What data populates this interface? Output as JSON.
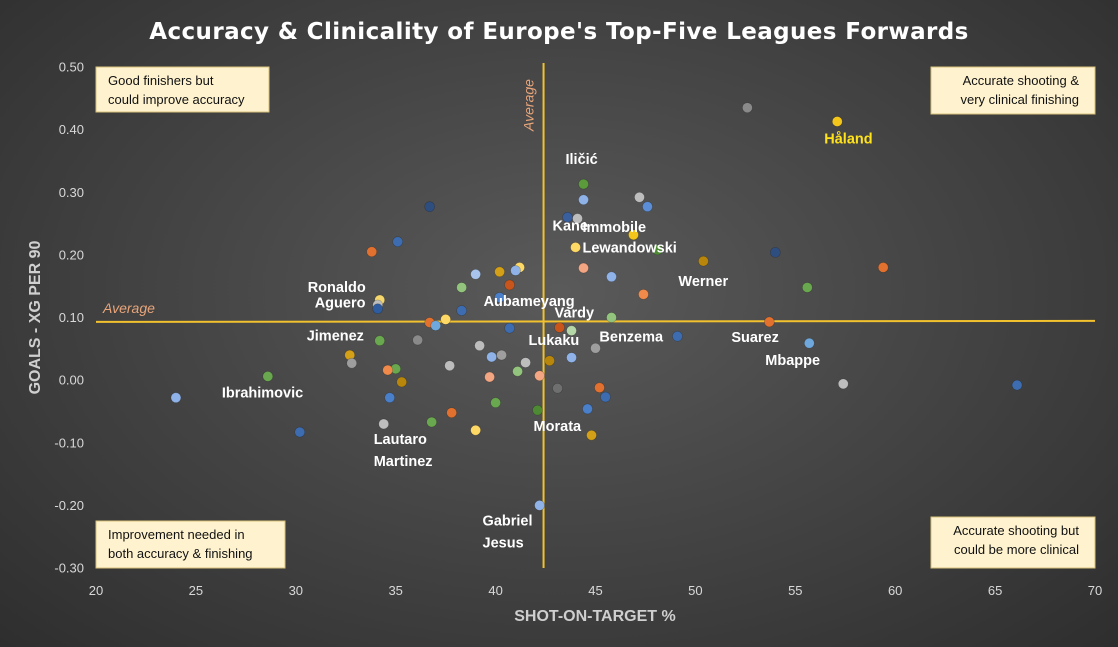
{
  "chart_data": {
    "type": "scatter",
    "title": "Accuracy & Clinicality of Europe's Top-Five Leagues Forwards",
    "xlabel": "SHOT-ON-TARGET %",
    "ylabel": "GOALS - XG PER 90",
    "xlim": [
      20,
      70
    ],
    "ylim": [
      -0.3,
      0.5
    ],
    "x_ticks": [
      "20",
      "25",
      "30",
      "35",
      "40",
      "45",
      "50",
      "55",
      "60",
      "65",
      "70"
    ],
    "y_ticks": [
      "-0.30",
      "-0.20",
      "-0.10",
      "0.00",
      "0.10",
      "0.20",
      "0.30",
      "0.40",
      "0.50"
    ],
    "grid": false,
    "average_lines": [
      {
        "label": "Average",
        "orientation": "vertical",
        "value": 42.4
      },
      {
        "label": "Average",
        "orientation": "horizontal",
        "value": 0.093
      }
    ],
    "quadrant_notes": [
      {
        "position": "top-left",
        "lines": [
          "Good finishers but",
          "could improve accuracy"
        ]
      },
      {
        "position": "top-right",
        "lines": [
          "Accurate shooting &",
          "very clinical finishing"
        ]
      },
      {
        "position": "bottom-left",
        "lines": [
          "Improvement needed in",
          "both accuracy & finishing"
        ]
      },
      {
        "position": "bottom-right",
        "lines": [
          "Accurate shooting but",
          "could be more clinical"
        ]
      }
    ],
    "points": [
      {
        "x": 57.1,
        "y": 0.413,
        "color": "#f5c61a",
        "label": "Håland",
        "highlight": true
      },
      {
        "x": 52.6,
        "y": 0.435,
        "color": "#8a8a8a"
      },
      {
        "x": 44.4,
        "y": 0.313,
        "color": "#5b9b3c",
        "label": "Iličić"
      },
      {
        "x": 47.2,
        "y": 0.292,
        "color": "#bdbdbd"
      },
      {
        "x": 47.6,
        "y": 0.277,
        "color": "#5b8ed6"
      },
      {
        "x": 44.4,
        "y": 0.288,
        "color": "#8fb3e8"
      },
      {
        "x": 43.6,
        "y": 0.26,
        "color": "#3a5f9e",
        "label": "Kane"
      },
      {
        "x": 44.1,
        "y": 0.258,
        "color": "#bdbdbd"
      },
      {
        "x": 46.9,
        "y": 0.232,
        "color": "#f5c61a",
        "label": "Immobile"
      },
      {
        "x": 44.0,
        "y": 0.212,
        "color": "#ffd966",
        "label": "Lewandowski"
      },
      {
        "x": 48.1,
        "y": 0.208,
        "color": "#4e8a34"
      },
      {
        "x": 36.7,
        "y": 0.277,
        "color": "#2f4e80"
      },
      {
        "x": 33.8,
        "y": 0.205,
        "color": "#e2702e"
      },
      {
        "x": 35.1,
        "y": 0.221,
        "color": "#3d6db0"
      },
      {
        "x": 54.0,
        "y": 0.204,
        "color": "#2f4e80"
      },
      {
        "x": 59.4,
        "y": 0.18,
        "color": "#e2702e"
      },
      {
        "x": 50.4,
        "y": 0.19,
        "color": "#b8860b",
        "label": "Werner"
      },
      {
        "x": 55.6,
        "y": 0.148,
        "color": "#6aa84f"
      },
      {
        "x": 44.4,
        "y": 0.179,
        "color": "#f4a582"
      },
      {
        "x": 45.8,
        "y": 0.165,
        "color": "#8fb3e8"
      },
      {
        "x": 47.4,
        "y": 0.137,
        "color": "#f08a4b"
      },
      {
        "x": 41.2,
        "y": 0.18,
        "color": "#ffd966"
      },
      {
        "x": 41.0,
        "y": 0.175,
        "color": "#8fb3e8"
      },
      {
        "x": 40.2,
        "y": 0.173,
        "color": "#d4a017"
      },
      {
        "x": 39.0,
        "y": 0.169,
        "color": "#a9c4ec"
      },
      {
        "x": 40.7,
        "y": 0.152,
        "color": "#c8561c",
        "label": "Aubameyang"
      },
      {
        "x": 38.3,
        "y": 0.148,
        "color": "#93c47d"
      },
      {
        "x": 40.2,
        "y": 0.132,
        "color": "#4a7fc9"
      },
      {
        "x": 34.2,
        "y": 0.128,
        "color": "#f5d76e",
        "label": "Ronaldo"
      },
      {
        "x": 34.1,
        "y": 0.12,
        "color": "#bdbdbd"
      },
      {
        "x": 34.1,
        "y": 0.114,
        "color": "#2f5c9e",
        "label": "Aguero"
      },
      {
        "x": 38.3,
        "y": 0.111,
        "color": "#3d6db0"
      },
      {
        "x": 37.5,
        "y": 0.097,
        "color": "#ffd966"
      },
      {
        "x": 36.7,
        "y": 0.092,
        "color": "#e2702e"
      },
      {
        "x": 37.0,
        "y": 0.087,
        "color": "#6fa8dc"
      },
      {
        "x": 45.8,
        "y": 0.1,
        "color": "#93c47d"
      },
      {
        "x": 43.2,
        "y": 0.084,
        "color": "#c8561c",
        "label": "Vardy"
      },
      {
        "x": 43.8,
        "y": 0.079,
        "color": "#b6d7a8"
      },
      {
        "x": 40.7,
        "y": 0.083,
        "color": "#3d6db0"
      },
      {
        "x": 53.7,
        "y": 0.093,
        "color": "#e2702e",
        "label": "Suarez"
      },
      {
        "x": 49.1,
        "y": 0.07,
        "color": "#3d6db0",
        "label": "Benzema"
      },
      {
        "x": 55.7,
        "y": 0.059,
        "color": "#6fa8dc",
        "label": "Mbappe"
      },
      {
        "x": 34.2,
        "y": 0.063,
        "color": "#6aa84f",
        "label": "Jimenez"
      },
      {
        "x": 36.1,
        "y": 0.064,
        "color": "#8a8a8a"
      },
      {
        "x": 39.2,
        "y": 0.055,
        "color": "#bdbdbd"
      },
      {
        "x": 45.0,
        "y": 0.051,
        "color": "#9e9e9e",
        "label": "Lukaku"
      },
      {
        "x": 32.7,
        "y": 0.04,
        "color": "#d4a017"
      },
      {
        "x": 32.8,
        "y": 0.027,
        "color": "#9e9e9e"
      },
      {
        "x": 39.8,
        "y": 0.037,
        "color": "#8fb3e8"
      },
      {
        "x": 40.3,
        "y": 0.04,
        "color": "#9e9e9e"
      },
      {
        "x": 43.8,
        "y": 0.036,
        "color": "#8fb3e8"
      },
      {
        "x": 42.7,
        "y": 0.031,
        "color": "#b8860b"
      },
      {
        "x": 41.5,
        "y": 0.028,
        "color": "#bdbdbd"
      },
      {
        "x": 37.7,
        "y": 0.023,
        "color": "#bdbdbd"
      },
      {
        "x": 35.0,
        "y": 0.018,
        "color": "#6aa84f"
      },
      {
        "x": 34.6,
        "y": 0.016,
        "color": "#f08a4b"
      },
      {
        "x": 41.1,
        "y": 0.014,
        "color": "#93c47d"
      },
      {
        "x": 39.7,
        "y": 0.005,
        "color": "#f4a582"
      },
      {
        "x": 42.2,
        "y": 0.007,
        "color": "#f4a582"
      },
      {
        "x": 28.6,
        "y": 0.006,
        "color": "#6aa84f",
        "label": "Ibrahimovic"
      },
      {
        "x": 35.3,
        "y": -0.003,
        "color": "#b8860b"
      },
      {
        "x": 43.1,
        "y": -0.013,
        "color": "#6f6f6f"
      },
      {
        "x": 45.2,
        "y": -0.012,
        "color": "#e2702e"
      },
      {
        "x": 57.4,
        "y": -0.006,
        "color": "#bdbdbd"
      },
      {
        "x": 66.1,
        "y": -0.008,
        "color": "#3d6db0"
      },
      {
        "x": 24.0,
        "y": -0.028,
        "color": "#8fb3e8"
      },
      {
        "x": 34.7,
        "y": -0.028,
        "color": "#4a7fc9"
      },
      {
        "x": 45.5,
        "y": -0.027,
        "color": "#3d6db0"
      },
      {
        "x": 40.0,
        "y": -0.036,
        "color": "#6aa84f"
      },
      {
        "x": 44.6,
        "y": -0.046,
        "color": "#4a7fc9"
      },
      {
        "x": 37.8,
        "y": -0.052,
        "color": "#e2702e"
      },
      {
        "x": 42.1,
        "y": -0.048,
        "color": "#4e8a34",
        "label": "Morata"
      },
      {
        "x": 36.8,
        "y": -0.067,
        "color": "#6aa84f"
      },
      {
        "x": 34.4,
        "y": -0.07,
        "color": "#bdbdbd",
        "label_lines": [
          "Lautaro",
          "Martinez"
        ]
      },
      {
        "x": 30.2,
        "y": -0.083,
        "color": "#3d6db0"
      },
      {
        "x": 39.0,
        "y": -0.08,
        "color": "#ffd966"
      },
      {
        "x": 44.8,
        "y": -0.088,
        "color": "#d4a017"
      },
      {
        "x": 42.2,
        "y": -0.2,
        "color": "#8fb3e8",
        "label_lines": [
          "Gabriel",
          "Jesus"
        ]
      }
    ]
  }
}
